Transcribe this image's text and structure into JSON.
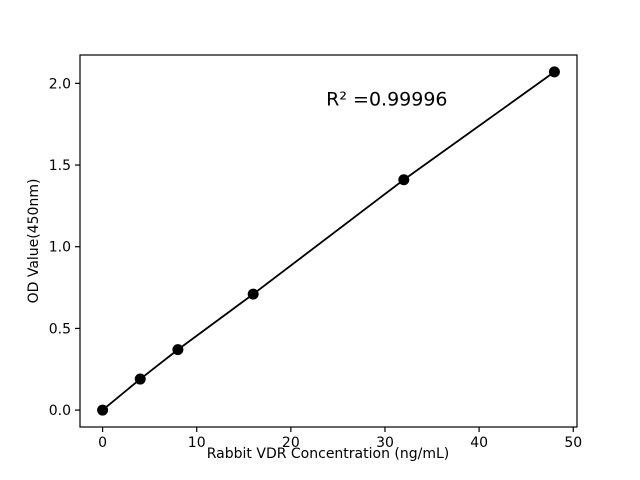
{
  "chart_data": {
    "type": "scatter",
    "x": [
      0,
      4,
      8,
      16,
      32,
      48
    ],
    "y": [
      0.0,
      0.19,
      0.37,
      0.71,
      1.41,
      2.07
    ],
    "title": "",
    "xlabel": "Rabbit VDR Concentration (ng/mL)",
    "ylabel": "OD Value(450nm)",
    "annotation": {
      "text": "R² =0.99996",
      "x": 30.2,
      "y": 1.9
    },
    "xlim": [
      -2.4,
      50.4
    ],
    "ylim": [
      -0.1035,
      2.1735
    ],
    "xticks": [
      0,
      10,
      20,
      30,
      40,
      50
    ],
    "xtick_labels": [
      "0",
      "10",
      "20",
      "30",
      "40",
      "50"
    ],
    "yticks": [
      0.0,
      0.5,
      1.0,
      1.5,
      2.0
    ],
    "ytick_labels": [
      "0.0",
      "0.5",
      "1.0",
      "1.5",
      "2.0"
    ],
    "grid": false,
    "legend": null,
    "line_color": "#000000",
    "marker_color": "#000000",
    "axis_color": "#000000",
    "background_color": "#ffffff"
  }
}
